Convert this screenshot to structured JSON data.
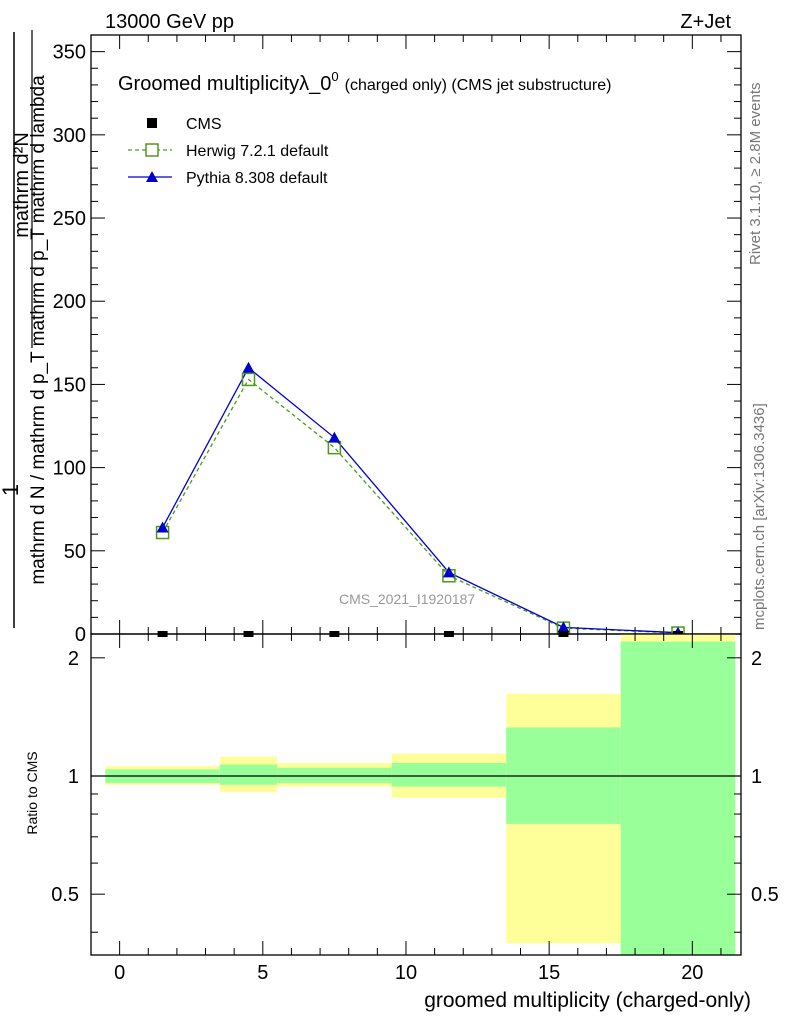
{
  "header": {
    "left": "13000 GeV pp",
    "right": "Z+Jet"
  },
  "side_text": {
    "rivet": "Rivet 3.1.10, ≥ 2.8M events",
    "mcplots": "mcplots.cern.ch [arXiv:1306.3436]"
  },
  "watermark": "CMS_2021_I1920187",
  "chart_data": [
    {
      "type": "line",
      "title": "Groomed multiplicityλ_0",
      "title_sup": "0",
      "subtitle": "(charged only) (CMS jet substructure)",
      "ylabel_numer_top": "mathrm d²N",
      "ylabel_numer_left": "1",
      "ylabel_denom": "mathrm d N / mathrm d p_T mathrm d p_T mathrm d lambda",
      "ylim": [
        0,
        360
      ],
      "yticks": [
        0,
        50,
        100,
        150,
        200,
        250,
        300,
        350
      ],
      "xlim": [
        -1,
        21.7
      ],
      "x": [
        1.5,
        4.5,
        7.5,
        11.5,
        15.5,
        19.5
      ],
      "series": [
        {
          "name": "CMS",
          "color": "#000000",
          "marker": "square",
          "values": [
            0,
            0,
            0,
            0,
            0,
            0
          ]
        },
        {
          "name": "Herwig 7.2.1 default",
          "color": "#4d9a1a",
          "marker": "open-square",
          "dashed": true,
          "values": [
            61,
            153,
            112,
            35,
            3.5,
            0.6
          ]
        },
        {
          "name": "Pythia 8.308 default",
          "color": "#0000cc",
          "marker": "triangle",
          "values": [
            64,
            160,
            118,
            37,
            4,
            0.8
          ]
        }
      ]
    },
    {
      "type": "area",
      "ylabel": "Ratio to CMS",
      "xlabel": "groomed multiplicity (charged-only)",
      "ylim": [
        0.35,
        2.3
      ],
      "yticks": [
        0.5,
        1,
        2
      ],
      "ytick_labels": [
        "0.5",
        "1",
        "2"
      ],
      "xticks": [
        0,
        5,
        10,
        15,
        20
      ],
      "xtick_labels": [
        "0",
        "5",
        "10",
        "15",
        "20"
      ],
      "bins": [
        {
          "lo": -0.5,
          "hi": 3.5,
          "yellow": [
            0.95,
            1.06
          ],
          "green": [
            0.96,
            1.04
          ]
        },
        {
          "lo": 3.5,
          "hi": 5.5,
          "yellow": [
            0.91,
            1.12
          ],
          "green": [
            0.95,
            1.07
          ]
        },
        {
          "lo": 5.5,
          "hi": 9.5,
          "yellow": [
            0.94,
            1.08
          ],
          "green": [
            0.96,
            1.05
          ]
        },
        {
          "lo": 9.5,
          "hi": 13.5,
          "yellow": [
            0.88,
            1.14
          ],
          "green": [
            0.94,
            1.08
          ]
        },
        {
          "lo": 13.5,
          "hi": 17.5,
          "yellow": [
            0.375,
            1.62
          ],
          "green": [
            0.755,
            1.33
          ]
        },
        {
          "lo": 17.5,
          "hi": 21.5,
          "yellow": [
            0.34,
            2.3
          ],
          "green": [
            0.34,
            2.2
          ]
        }
      ],
      "colors": {
        "yellow": "#ffff99",
        "green": "#99ff99"
      }
    }
  ]
}
